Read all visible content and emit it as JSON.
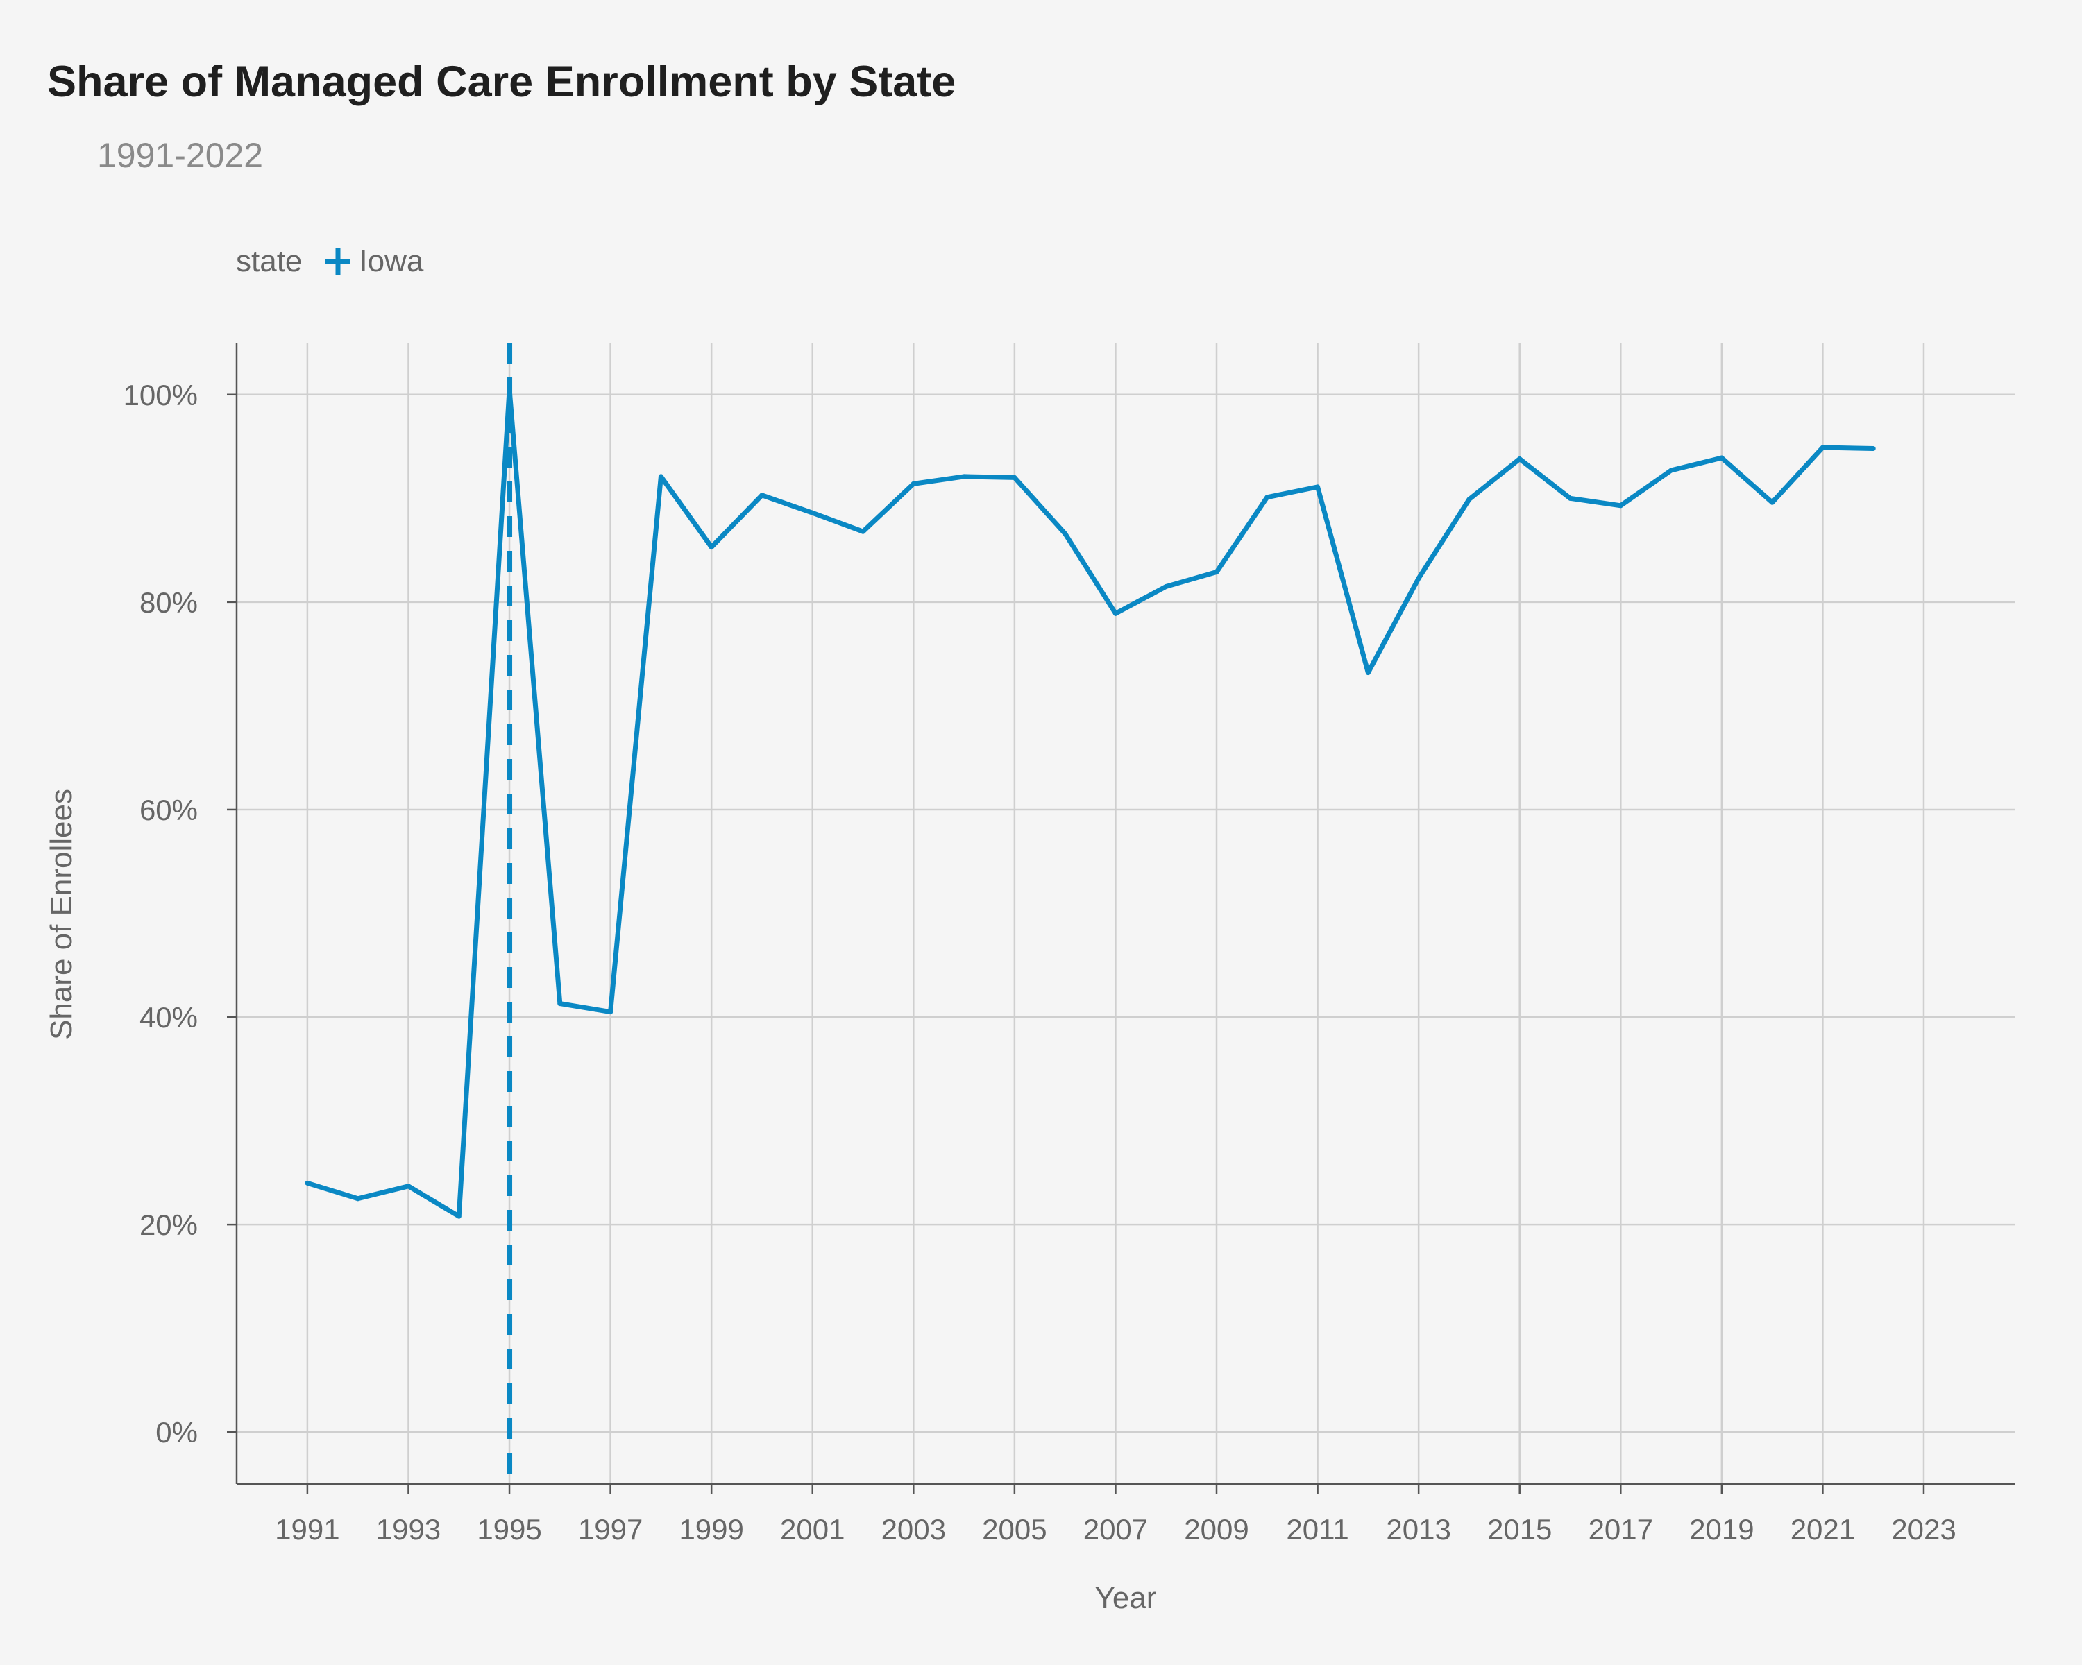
{
  "chart_data": {
    "type": "line",
    "title": "Share of Managed Care Enrollment by State",
    "subtitle": "1991-2022",
    "xlabel": "Year",
    "ylabel": "Share of Enrollees",
    "legend_title": "state",
    "legend_position": "top-left",
    "xlim": [
      1989.6,
      2024.8
    ],
    "ylim": [
      -5,
      105
    ],
    "x_ticks": [
      1991,
      1993,
      1995,
      1997,
      1999,
      2001,
      2003,
      2005,
      2007,
      2009,
      2011,
      2013,
      2015,
      2017,
      2019,
      2021,
      2023
    ],
    "y_ticks": [
      0,
      20,
      40,
      60,
      80,
      100
    ],
    "y_tick_labels": [
      "0%",
      "20%",
      "40%",
      "60%",
      "80%",
      "100%"
    ],
    "grid": true,
    "reference_line": {
      "x": 1995,
      "style": "dashed",
      "color": "#0a88c4"
    },
    "series": [
      {
        "name": "Iowa",
        "color": "#0a88c4",
        "x": [
          1991,
          1992,
          1993,
          1994,
          1995,
          1996,
          1997,
          1998,
          1999,
          2000,
          2001,
          2002,
          2003,
          2004,
          2005,
          2006,
          2007,
          2008,
          2009,
          2010,
          2011,
          2012,
          2013,
          2014,
          2015,
          2016,
          2017,
          2018,
          2019,
          2020,
          2021,
          2022
        ],
        "values": [
          24.0,
          22.5,
          23.7,
          20.8,
          100.5,
          41.3,
          40.5,
          92.1,
          85.3,
          90.3,
          88.6,
          86.8,
          91.4,
          92.1,
          92.0,
          86.6,
          78.9,
          81.5,
          82.9,
          90.1,
          91.1,
          73.2,
          82.3,
          89.9,
          93.8,
          90.0,
          89.3,
          92.7,
          93.9,
          89.6,
          94.9,
          94.8
        ]
      }
    ]
  }
}
